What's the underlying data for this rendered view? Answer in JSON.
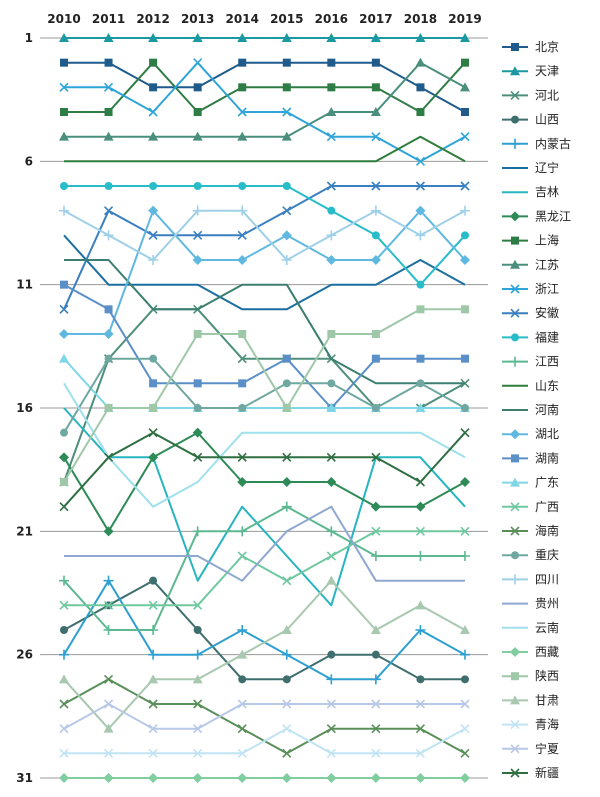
{
  "chart_data": {
    "type": "line",
    "x": [
      "2010",
      "2011",
      "2012",
      "2013",
      "2014",
      "2015",
      "2016",
      "2017",
      "2018",
      "2019"
    ],
    "y_ticks": [
      1,
      6,
      11,
      16,
      21,
      26,
      31
    ],
    "ylim": [
      1,
      31
    ],
    "y_inverted": true,
    "grid": "horizontal",
    "legend": "right",
    "series": [
      {
        "name": "北京",
        "color": "#1f5c8b",
        "marker": "square",
        "values": [
          2,
          2,
          3,
          3,
          2,
          2,
          2,
          2,
          3,
          4
        ]
      },
      {
        "name": "天津",
        "color": "#1a9aa0",
        "marker": "triangle",
        "values": [
          1,
          1,
          1,
          1,
          1,
          1,
          1,
          1,
          1,
          1
        ]
      },
      {
        "name": "河北",
        "color": "#4e8f7c",
        "marker": "x",
        "values": [
          19,
          14,
          12,
          12,
          14,
          14,
          14,
          16,
          16,
          15
        ]
      },
      {
        "name": "山西",
        "color": "#3e6e6e",
        "marker": "circle",
        "values": [
          25,
          24,
          23,
          25,
          27,
          27,
          26,
          26,
          27,
          27
        ]
      },
      {
        "name": "内蒙古",
        "color": "#2f9fd0",
        "marker": "plus",
        "values": [
          26,
          23,
          26,
          26,
          25,
          26,
          27,
          27,
          25,
          26
        ]
      },
      {
        "name": "辽宁",
        "color": "#1a6fa0",
        "marker": "none",
        "values": [
          9,
          11,
          11,
          11,
          12,
          12,
          11,
          11,
          10,
          11
        ]
      },
      {
        "name": "吉林",
        "color": "#27b5c0",
        "marker": "none",
        "values": [
          16,
          18,
          18,
          23,
          20,
          22,
          24,
          18,
          18,
          20
        ]
      },
      {
        "name": "黑龙江",
        "color": "#2e8b57",
        "marker": "diamond",
        "values": [
          18,
          21,
          18,
          17,
          19,
          19,
          19,
          20,
          20,
          19
        ]
      },
      {
        "name": "上海",
        "color": "#2e7d45",
        "marker": "square",
        "values": [
          4,
          4,
          2,
          4,
          3,
          3,
          3,
          3,
          4,
          2
        ]
      },
      {
        "name": "江苏",
        "color": "#4a8f7d",
        "marker": "triangle",
        "values": [
          5,
          5,
          5,
          5,
          5,
          5,
          4,
          4,
          2,
          3
        ]
      },
      {
        "name": "浙江",
        "color": "#2fa4d8",
        "marker": "x",
        "values": [
          3,
          3,
          4,
          2,
          4,
          4,
          5,
          5,
          6,
          5
        ]
      },
      {
        "name": "安徽",
        "color": "#3a7fc0",
        "marker": "x",
        "values": [
          12,
          8,
          9,
          9,
          9,
          8,
          7,
          7,
          7,
          7
        ]
      },
      {
        "name": "福建",
        "color": "#28bcc8",
        "marker": "circle",
        "values": [
          7,
          7,
          7,
          7,
          7,
          7,
          8,
          9,
          11,
          9
        ]
      },
      {
        "name": "江西",
        "color": "#5cb890",
        "marker": "plus",
        "values": [
          23,
          25,
          25,
          21,
          21,
          20,
          21,
          22,
          22,
          22
        ]
      },
      {
        "name": "山东",
        "color": "#2e7d3a",
        "marker": "none",
        "values": [
          6,
          6,
          6,
          6,
          6,
          6,
          6,
          6,
          5,
          6
        ]
      },
      {
        "name": "河南",
        "color": "#3c7f70",
        "marker": "none",
        "values": [
          10,
          10,
          12,
          12,
          11,
          11,
          14,
          15,
          15,
          15
        ]
      },
      {
        "name": "湖北",
        "color": "#5fb8e0",
        "marker": "diamond",
        "values": [
          13,
          13,
          8,
          10,
          10,
          9,
          10,
          10,
          8,
          10
        ]
      },
      {
        "name": "湖南",
        "color": "#5a8fc8",
        "marker": "square",
        "values": [
          11,
          12,
          15,
          15,
          15,
          14,
          16,
          14,
          14,
          14
        ]
      },
      {
        "name": "广东",
        "color": "#7fd6e6",
        "marker": "triangle",
        "values": [
          14,
          16,
          16,
          16,
          16,
          16,
          16,
          16,
          16,
          16
        ]
      },
      {
        "name": "广西",
        "color": "#70c8a0",
        "marker": "x",
        "values": [
          24,
          24,
          24,
          24,
          22,
          23,
          22,
          21,
          21,
          21
        ]
      },
      {
        "name": "海南",
        "color": "#5a8f5a",
        "marker": "x",
        "values": [
          28,
          27,
          28,
          28,
          29,
          30,
          29,
          29,
          29,
          30
        ]
      },
      {
        "name": "重庆",
        "color": "#6fa8a0",
        "marker": "circle",
        "values": [
          17,
          14,
          14,
          16,
          16,
          15,
          15,
          16,
          15,
          16
        ]
      },
      {
        "name": "四川",
        "color": "#9fd0e8",
        "marker": "plus",
        "values": [
          8,
          9,
          10,
          8,
          8,
          10,
          9,
          8,
          9,
          8
        ]
      },
      {
        "name": "贵州",
        "color": "#8fa8d0",
        "marker": "none",
        "values": [
          22,
          22,
          22,
          22,
          23,
          21,
          20,
          23,
          23,
          23
        ]
      },
      {
        "name": "云南",
        "color": "#9fe0ec",
        "marker": "none",
        "values": [
          15,
          18,
          20,
          19,
          17,
          17,
          17,
          17,
          17,
          18
        ]
      },
      {
        "name": "西藏",
        "color": "#80cda0",
        "marker": "diamond",
        "values": [
          31,
          31,
          31,
          31,
          31,
          31,
          31,
          31,
          31,
          31
        ]
      },
      {
        "name": "陕西",
        "color": "#9fc8a8",
        "marker": "square",
        "values": [
          19,
          16,
          16,
          13,
          13,
          16,
          13,
          13,
          12,
          12
        ]
      },
      {
        "name": "甘肃",
        "color": "#a8c8b0",
        "marker": "triangle",
        "values": [
          27,
          29,
          27,
          27,
          26,
          25,
          23,
          25,
          24,
          25
        ]
      },
      {
        "name": "青海",
        "color": "#c0e4f4",
        "marker": "x",
        "values": [
          30,
          30,
          30,
          30,
          30,
          29,
          30,
          30,
          30,
          29
        ]
      },
      {
        "name": "宁夏",
        "color": "#b8c8e8",
        "marker": "x",
        "values": [
          29,
          28,
          29,
          29,
          28,
          28,
          28,
          28,
          28,
          28
        ]
      },
      {
        "name": "新疆",
        "color": "#2e6e40",
        "marker": "x",
        "values": [
          20,
          18,
          17,
          18,
          18,
          18,
          18,
          18,
          19,
          17
        ]
      }
    ]
  }
}
